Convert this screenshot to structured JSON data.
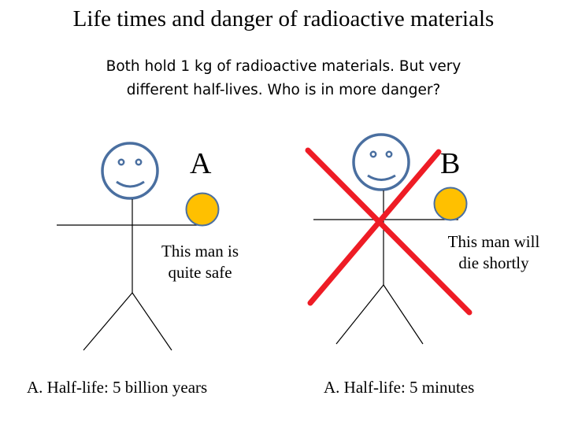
{
  "title": "Life times and danger of radioactive materials",
  "subtitle_line1": "Both hold 1 kg of radioactive materials.  But very",
  "subtitle_line2": "different half-lives.  Who is in more danger?",
  "person_a": {
    "label": "A",
    "caption_line1": "This man is",
    "caption_line2": "quite safe",
    "half_life": "A. Half-life:  5 billion years"
  },
  "person_b": {
    "label": "B",
    "caption_line1": "This man will",
    "caption_line2": "die shortly",
    "half_life": "A. Half-life:  5 minutes"
  },
  "colors": {
    "face_stroke": "#4a6fa0",
    "ball_fill": "#ffc000",
    "ball_stroke": "#4a6fa0",
    "cross": "#ee1c25",
    "line": "#000000"
  },
  "icons": [
    "smiley-face-icon",
    "radioactive-ball-icon",
    "red-x-icon"
  ]
}
